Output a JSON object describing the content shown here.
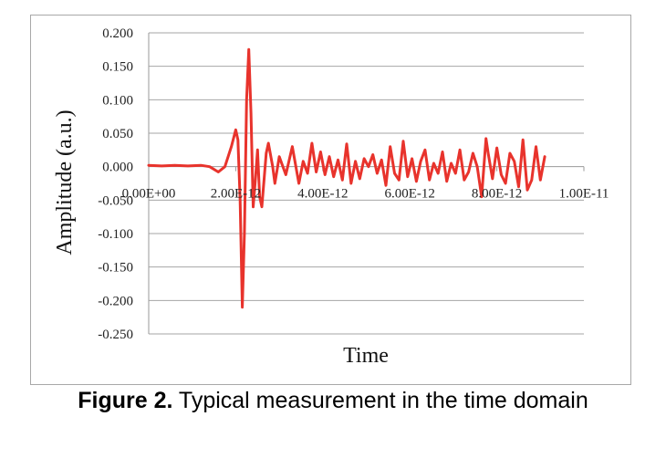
{
  "figure": {
    "caption_bold": "Figure 2.",
    "caption_text": " Typical measurement in the time domain"
  },
  "chart_data": {
    "type": "line",
    "title": "",
    "xlabel": "Time",
    "ylabel": "Amplitude (a.u.)",
    "xlim": [
      0,
      1e-11
    ],
    "ylim": [
      -0.25,
      0.2
    ],
    "x_ticks": [
      0,
      2e-12,
      4e-12,
      6e-12,
      8e-12,
      1e-11
    ],
    "x_tick_labels": [
      "0.00E+00",
      "2.00E-12",
      "4.00E-12",
      "6.00E-12",
      "8.00E-12",
      "1.00E-11"
    ],
    "y_ticks": [
      0.2,
      0.15,
      0.1,
      0.05,
      0.0,
      -0.05,
      -0.1,
      -0.15,
      -0.2,
      -0.25
    ],
    "y_tick_labels": [
      "0.200",
      "0.150",
      "0.100",
      "0.050",
      "0.000",
      "-0.050",
      "-0.100",
      "-0.150",
      "-0.200",
      "-0.250"
    ],
    "grid": true,
    "series_color": "#e8332c",
    "series": [
      {
        "name": "",
        "x": [
          0,
          3e-13,
          6e-13,
          9e-13,
          1.2e-12,
          1.4e-12,
          1.6e-12,
          1.75e-12,
          1.9e-12,
          2e-12,
          2.05e-12,
          2.1e-12,
          2.15e-12,
          2.2e-12,
          2.25e-12,
          2.3e-12,
          2.35e-12,
          2.4e-12,
          2.45e-12,
          2.5e-12,
          2.55e-12,
          2.6e-12,
          2.7e-12,
          2.75e-12,
          2.85e-12,
          2.9e-12,
          3e-12,
          3.15e-12,
          3.3e-12,
          3.45e-12,
          3.55e-12,
          3.65e-12,
          3.75e-12,
          3.85e-12,
          3.95e-12,
          4.05e-12,
          4.15e-12,
          4.25e-12,
          4.35e-12,
          4.45e-12,
          4.55e-12,
          4.65e-12,
          4.75e-12,
          4.85e-12,
          4.95e-12,
          5.05e-12,
          5.15e-12,
          5.25e-12,
          5.35e-12,
          5.45e-12,
          5.55e-12,
          5.65e-12,
          5.75e-12,
          5.85e-12,
          5.95e-12,
          6.05e-12,
          6.15e-12,
          6.25e-12,
          6.35e-12,
          6.45e-12,
          6.55e-12,
          6.65e-12,
          6.75e-12,
          6.85e-12,
          6.95e-12,
          7.05e-12,
          7.15e-12,
          7.25e-12,
          7.35e-12,
          7.45e-12,
          7.55e-12,
          7.65e-12,
          7.75e-12,
          7.8e-12,
          7.9e-12,
          8e-12,
          8.1e-12,
          8.2e-12,
          8.3e-12,
          8.4e-12,
          8.5e-12,
          8.6e-12,
          8.7e-12,
          8.8e-12,
          8.9e-12,
          9e-12,
          9.1e-12
        ],
        "y": [
          0.002,
          0.001,
          0.002,
          0.001,
          0.002,
          0.0,
          -0.008,
          0.0,
          0.03,
          0.055,
          0.04,
          -0.05,
          -0.21,
          -0.1,
          0.1,
          0.175,
          0.08,
          -0.06,
          -0.02,
          0.025,
          -0.045,
          -0.06,
          0.02,
          0.035,
          0.0,
          -0.025,
          0.015,
          -0.012,
          0.03,
          -0.025,
          0.008,
          -0.01,
          0.035,
          -0.008,
          0.022,
          -0.012,
          0.015,
          -0.015,
          0.01,
          -0.02,
          0.034,
          -0.025,
          0.008,
          -0.018,
          0.012,
          0.0,
          0.018,
          -0.01,
          0.01,
          -0.028,
          0.03,
          -0.01,
          -0.02,
          0.038,
          -0.015,
          0.012,
          -0.022,
          0.008,
          0.025,
          -0.02,
          0.005,
          -0.01,
          0.022,
          -0.022,
          0.005,
          -0.01,
          0.025,
          -0.02,
          -0.008,
          0.02,
          0.0,
          -0.045,
          0.042,
          0.02,
          -0.018,
          0.028,
          -0.012,
          -0.025,
          0.02,
          0.008,
          -0.03,
          0.04,
          -0.035,
          -0.02,
          0.03,
          -0.02,
          0.015
        ]
      }
    ]
  }
}
